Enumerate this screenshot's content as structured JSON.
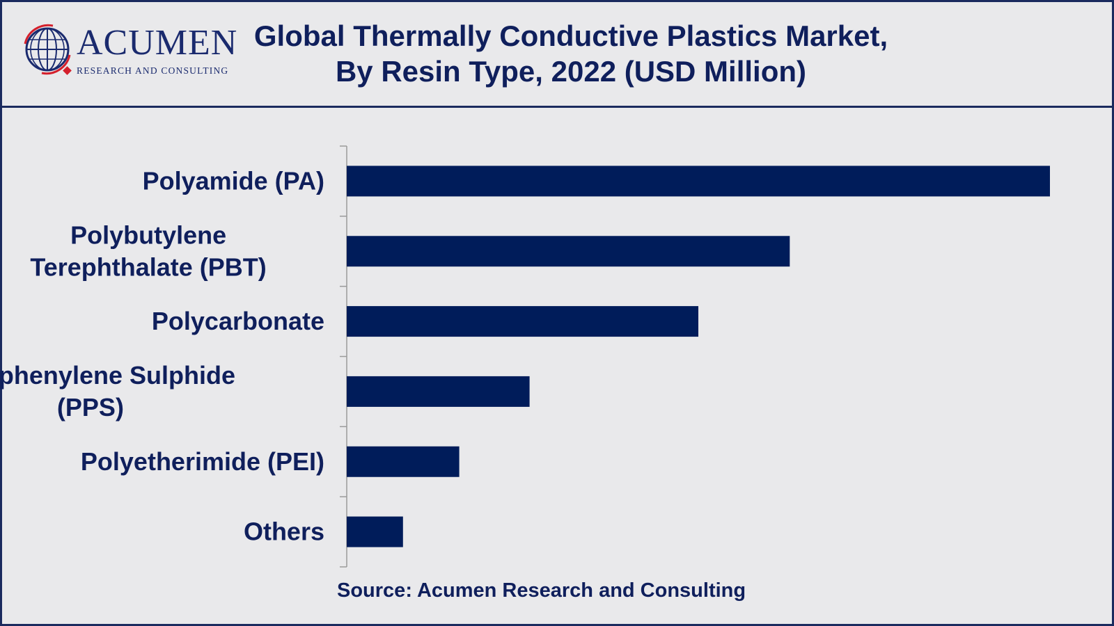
{
  "header": {
    "logo_name": "ACUMEN",
    "logo_tagline": "RESEARCH AND CONSULTING",
    "title_line1": "Global Thermally Conductive Plastics Market,",
    "title_line2": "By Resin Type, 2022 (USD Million)"
  },
  "colors": {
    "bar": "#001c5a",
    "text": "#0f1f5c",
    "background": "#e9e9eb",
    "logo_red": "#d4202c"
  },
  "chart_data": {
    "type": "bar",
    "orientation": "horizontal",
    "title": "Global Thermally Conductive Plastics Market, By Resin Type, 2022 (USD Million)",
    "categories": [
      "Polyamide (PA)",
      "Polybutylene Terephthalate (PBT)",
      "Polycarbonate",
      "Polyphenylene Sulphide (PPS)",
      "Polyetherimide (PEI)",
      "Others"
    ],
    "category_lines": [
      [
        "Polyamide (PA)"
      ],
      [
        "Polybutylene",
        "Terephthalate (PBT)"
      ],
      [
        "Polycarbonate"
      ],
      [
        "Polyphenylene Sulphide",
        "(PPS)"
      ],
      [
        "Polyetherimide (PEI)"
      ],
      [
        "Others"
      ]
    ],
    "values": [
      100,
      63,
      50,
      26,
      16,
      8
    ],
    "value_units": "relative bar length (no axis values shown)",
    "xlim": [
      0,
      100
    ],
    "grid": false,
    "legend": "none"
  },
  "footer": {
    "source": "Source: Acumen Research and Consulting"
  }
}
